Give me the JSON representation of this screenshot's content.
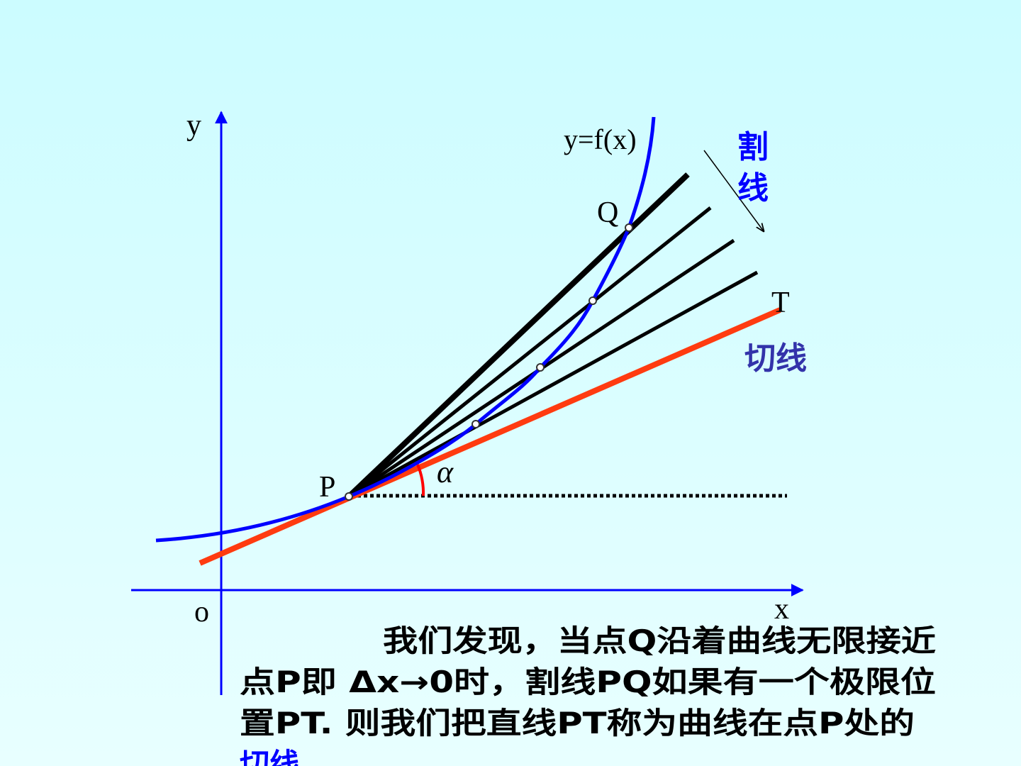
{
  "diagram": {
    "axis_y_label": "y",
    "axis_x_label": "x",
    "origin_label": "o",
    "curve_label": "y=f(x)",
    "point_q": "Q",
    "point_t": "T",
    "point_p": "P",
    "angle_label": "α",
    "secant_label": [
      "割",
      "线"
    ],
    "tangent_label": "切线"
  },
  "paragraph": {
    "lines": [
      "我们发现，当点Q沿着曲线无限接近",
      "点P即 Δx→0时，割线PQ如果有一个极限位",
      "置PT. 则我们把直线PT称为曲线在点P处的"
    ],
    "ending": "切线"
  }
}
